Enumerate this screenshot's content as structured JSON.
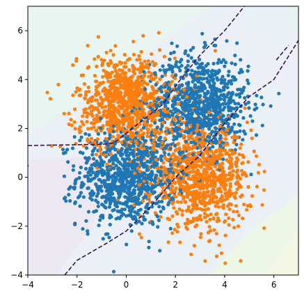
{
  "chart_data": {
    "type": "scatter",
    "title": "",
    "xlabel": "",
    "ylabel": "",
    "xlim": [
      -4,
      7
    ],
    "ylim": [
      -4,
      7
    ],
    "xticks": [
      -4,
      -2,
      0,
      2,
      4,
      6
    ],
    "yticks": [
      -4,
      -2,
      0,
      2,
      4,
      6
    ],
    "xtick_labels": [
      "−4",
      "−2",
      "0",
      "2",
      "4",
      "6"
    ],
    "ytick_labels": [
      "−4",
      "−2",
      "0",
      "2",
      "4",
      "6"
    ],
    "grid": false,
    "legend": "none",
    "background": "decision-region contour fill (pale teal / lavender / pale green / pale yellow)",
    "series": [
      {
        "color": "#1f77b4",
        "clusters": [
          {
            "center": [
              0.0,
              0.0
            ],
            "std": 1.0,
            "count": 900
          },
          {
            "center": [
              3.0,
              3.0
            ],
            "std": 1.0,
            "count": 900
          }
        ]
      },
      {
        "color": "#ff7f0e",
        "clusters": [
          {
            "center": [
              0.0,
              3.0
            ],
            "std": 1.0,
            "count": 900
          },
          {
            "center": [
              3.0,
              0.0
            ],
            "std": 1.0,
            "count": 900
          }
        ]
      }
    ],
    "decision_boundaries": [
      {
        "style": "dashed",
        "color": "#3b0f4f",
        "points": [
          [
            -4.0,
            1.3
          ],
          [
            -1.0,
            1.35
          ],
          [
            -0.5,
            1.4
          ],
          [
            0.5,
            2.2
          ],
          [
            1.5,
            3.0
          ],
          [
            2.2,
            4.0
          ],
          [
            3.0,
            5.0
          ],
          [
            4.0,
            6.0
          ],
          [
            4.8,
            7.0
          ]
        ]
      },
      {
        "style": "dashed",
        "color": "#3b0f4f",
        "points": [
          [
            -2.5,
            -4.0
          ],
          [
            -2.0,
            -3.4
          ],
          [
            -0.8,
            -2.7
          ],
          [
            0.0,
            -2.2
          ],
          [
            1.0,
            -1.2
          ],
          [
            2.0,
            0.0
          ],
          [
            3.0,
            0.9
          ],
          [
            4.0,
            2.2
          ],
          [
            5.0,
            3.3
          ],
          [
            6.0,
            4.0
          ],
          [
            7.0,
            5.6
          ]
        ]
      },
      {
        "style": "dashed",
        "color": "#3b0f4f",
        "points": [
          [
            6.1,
            4.8
          ],
          [
            6.6,
            5.4
          ]
        ]
      }
    ]
  }
}
